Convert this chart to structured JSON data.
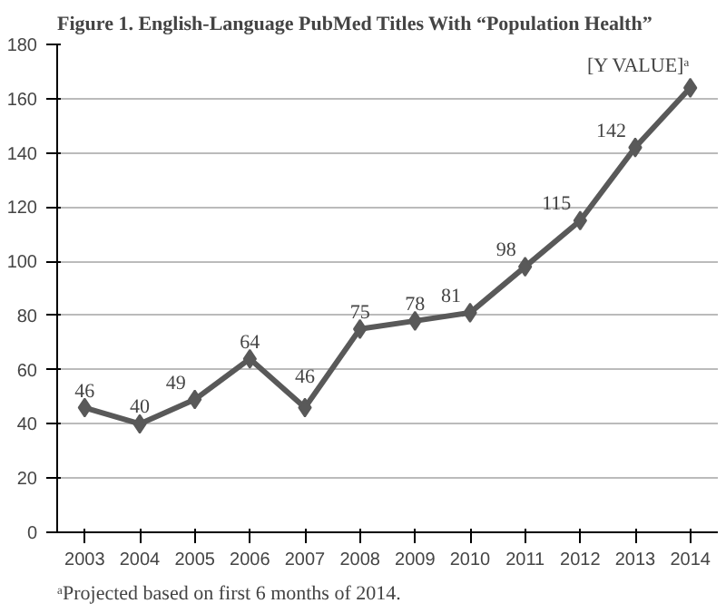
{
  "chart_data": {
    "type": "line",
    "title": "Figure 1.   English-Language PubMed Titles With “Population Health”",
    "categories": [
      "2003",
      "2004",
      "2005",
      "2006",
      "2007",
      "2008",
      "2009",
      "2010",
      "2011",
      "2012",
      "2013",
      "2014"
    ],
    "values": [
      46,
      40,
      49,
      64,
      46,
      75,
      78,
      81,
      98,
      115,
      142,
      164
    ],
    "value_labels": [
      "46",
      "40",
      "49",
      "64",
      "46",
      "75",
      "78",
      "81",
      "98",
      "115",
      "142",
      "[Y VALUE]ᵃ"
    ],
    "color": "#595959",
    "marker": "diamond",
    "line_style": "solid",
    "ylim": [
      0,
      180
    ],
    "yticks": [
      0,
      20,
      40,
      60,
      80,
      100,
      120,
      140,
      160,
      180
    ],
    "grid": "y",
    "annotations": [
      "ᵃProjected based on first 6 months of 2014."
    ]
  }
}
